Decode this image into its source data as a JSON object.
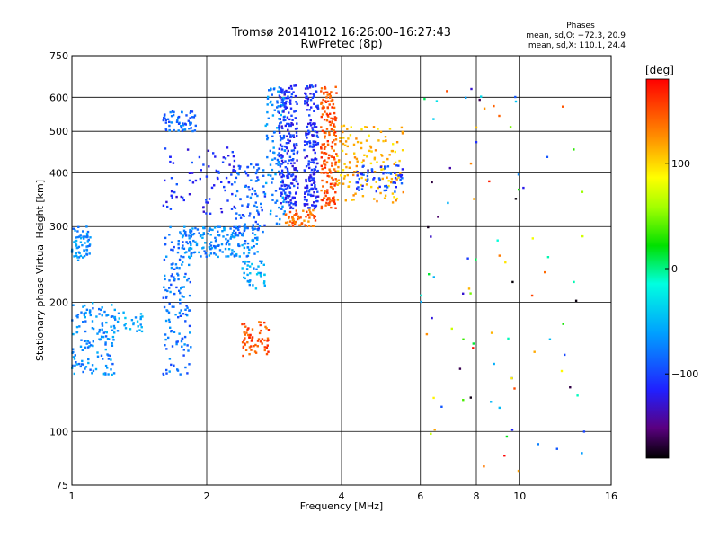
{
  "chart_data": {
    "type": "scatter",
    "title": "Tromsø 20141012 16:26:00–16:27:43",
    "subtitle": "RwPretec (8p)",
    "xlabel": "Frequency [MHz]",
    "ylabel": "Stationary phase Virtual Height [km]",
    "x_scale": "log",
    "y_scale": "log",
    "xlim": [
      1,
      16
    ],
    "ylim": [
      75,
      750
    ],
    "x_ticks": [
      1,
      2,
      4,
      6,
      8,
      10,
      16
    ],
    "x_tick_labels": [
      "1",
      "2",
      "4",
      "6",
      "8",
      "10",
      "16"
    ],
    "y_ticks": [
      75,
      100,
      200,
      300,
      400,
      500,
      600,
      750
    ],
    "y_tick_labels": [
      "75",
      "100",
      "200",
      "300",
      "400",
      "500",
      "600",
      "750"
    ],
    "grid": true,
    "phase_info": {
      "heading": "Phases",
      "line1": "mean, sd,O: −72.3, 20.9",
      "line2": "mean, sd,X: 110.1, 24.4"
    },
    "colorbar": {
      "label": "[deg]",
      "range": [
        -180,
        180
      ],
      "ticks": [
        100,
        0,
        -100
      ],
      "tick_labels": [
        "100",
        "0",
        "−100"
      ],
      "colormap": "rainbow"
    },
    "clusters": [
      {
        "f": [
          1.0,
          1.1
        ],
        "h": [
          250,
          300
        ],
        "phase": -70,
        "count": 60
      },
      {
        "f": [
          1.0,
          1.25
        ],
        "h": [
          135,
          200
        ],
        "phase": -70,
        "count": 140
      },
      {
        "f": [
          1.25,
          1.45
        ],
        "h": [
          170,
          190
        ],
        "phase": -60,
        "count": 25
      },
      {
        "f": [
          1.6,
          1.85
        ],
        "h": [
          135,
          300
        ],
        "phase": -80,
        "count": 140
      },
      {
        "f": [
          1.6,
          1.9
        ],
        "h": [
          500,
          560
        ],
        "phase": -85,
        "count": 60
      },
      {
        "f": [
          1.75,
          2.6
        ],
        "h": [
          255,
          300
        ],
        "phase": -70,
        "count": 180
      },
      {
        "f": [
          1.6,
          2.4
        ],
        "h": [
          320,
          460
        ],
        "phase": -110,
        "count": 80
      },
      {
        "f": [
          2.3,
          2.7
        ],
        "h": [
          290,
          420
        ],
        "phase": -90,
        "count": 90
      },
      {
        "f": [
          2.4,
          2.7
        ],
        "h": [
          215,
          250
        ],
        "phase": -60,
        "count": 40
      },
      {
        "f": [
          2.7,
          3.0
        ],
        "h": [
          300,
          640
        ],
        "phase": -70,
        "count": 110
      },
      {
        "f": [
          2.9,
          3.2
        ],
        "h": [
          330,
          640
        ],
        "phase": -110,
        "count": 220
      },
      {
        "f": [
          3.3,
          3.55
        ],
        "h": [
          330,
          640
        ],
        "phase": -110,
        "count": 180
      },
      {
        "f": [
          3.0,
          3.5
        ],
        "h": [
          300,
          330
        ],
        "phase": 140,
        "count": 60
      },
      {
        "f": [
          3.6,
          3.9
        ],
        "h": [
          330,
          640
        ],
        "phase": 150,
        "count": 180
      },
      {
        "f": [
          3.9,
          5.5
        ],
        "h": [
          340,
          520
        ],
        "phase": 110,
        "count": 140
      },
      {
        "f": [
          4.3,
          5.5
        ],
        "h": [
          360,
          420
        ],
        "phase": -100,
        "count": 60
      },
      {
        "f": [
          2.4,
          2.75
        ],
        "h": [
          150,
          180
        ],
        "phase": 150,
        "count": 60
      },
      {
        "f": [
          6.0,
          14.0
        ],
        "h": [
          80,
          650
        ],
        "phase": 0,
        "count": 90
      }
    ]
  }
}
